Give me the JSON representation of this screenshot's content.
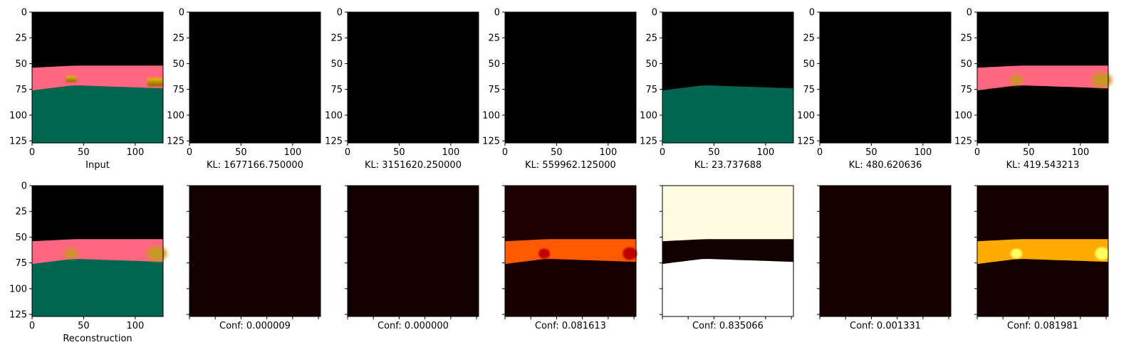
{
  "chart_data": {
    "type": "image_grid",
    "x_ticks": [
      "0",
      "50",
      "100"
    ],
    "y_ticks": [
      "0",
      "25",
      "50",
      "75",
      "100",
      "125"
    ],
    "x_range": [
      0,
      127
    ],
    "y_range": [
      127,
      0
    ],
    "rows": [
      {
        "panels": [
          {
            "caption": "Input",
            "kind": "scene",
            "layers": [
              "sky",
              "pink",
              "green",
              "objects"
            ],
            "show_x_labels": true,
            "show_y_labels": true
          },
          {
            "caption": "KL: 1677166.750000",
            "kind": "scene",
            "layers": [],
            "show_x_labels": true,
            "show_y_labels": true
          },
          {
            "caption": "KL: 3151620.250000",
            "kind": "scene",
            "layers": [],
            "show_x_labels": true,
            "show_y_labels": true
          },
          {
            "caption": "KL: 559962.125000",
            "kind": "scene",
            "layers": [],
            "show_x_labels": true,
            "show_y_labels": true
          },
          {
            "caption": "KL: 23.737688",
            "kind": "scene",
            "layers": [
              "green"
            ],
            "show_x_labels": true,
            "show_y_labels": true
          },
          {
            "caption": "KL: 480.620636",
            "kind": "scene",
            "layers": [],
            "show_x_labels": true,
            "show_y_labels": true
          },
          {
            "caption": "KL: 419.543213",
            "kind": "scene",
            "layers": [
              "pink",
              "objects_blurred"
            ],
            "show_x_labels": true,
            "show_y_labels": true
          }
        ]
      },
      {
        "panels": [
          {
            "caption": "Reconstruction",
            "kind": "scene",
            "layers": [
              "sky",
              "pink",
              "green",
              "objects_blurred"
            ],
            "show_x_labels": true,
            "show_y_labels": true
          },
          {
            "caption": "Conf: 0.000009",
            "kind": "heat",
            "band": null,
            "top": "#120000",
            "bottom": "#120000",
            "show_x_labels": false,
            "show_y_labels": false
          },
          {
            "caption": "Conf: 0.000000",
            "kind": "heat",
            "band": null,
            "top": "#120000",
            "bottom": "#120000",
            "show_x_labels": false,
            "show_y_labels": false
          },
          {
            "caption": "Conf: 0.081613",
            "kind": "heat",
            "band": "#ff5a00",
            "blobs": "#c00000",
            "top": "#1e0000",
            "bottom": "#180000",
            "show_x_labels": false,
            "show_y_labels": false
          },
          {
            "caption": "Conf: 0.835066",
            "kind": "heat",
            "band": "#100000",
            "blobs": null,
            "top": "#fffbe0",
            "bottom": "#ffffff",
            "show_x_labels": false,
            "show_y_labels": false
          },
          {
            "caption": "Conf: 0.001331",
            "kind": "heat",
            "band": null,
            "top": "#160000",
            "bottom": "#160000",
            "show_x_labels": false,
            "show_y_labels": false
          },
          {
            "caption": "Conf: 0.081981",
            "kind": "heat",
            "band": "#ffaa00",
            "blobs": "#ffff60",
            "top": "#150000",
            "bottom": "#150000",
            "show_x_labels": false,
            "show_y_labels": false
          }
        ]
      }
    ],
    "colors": {
      "sky": "#000000",
      "pink": "#ff6680",
      "green": "#006650",
      "object": "#c8a000"
    }
  }
}
